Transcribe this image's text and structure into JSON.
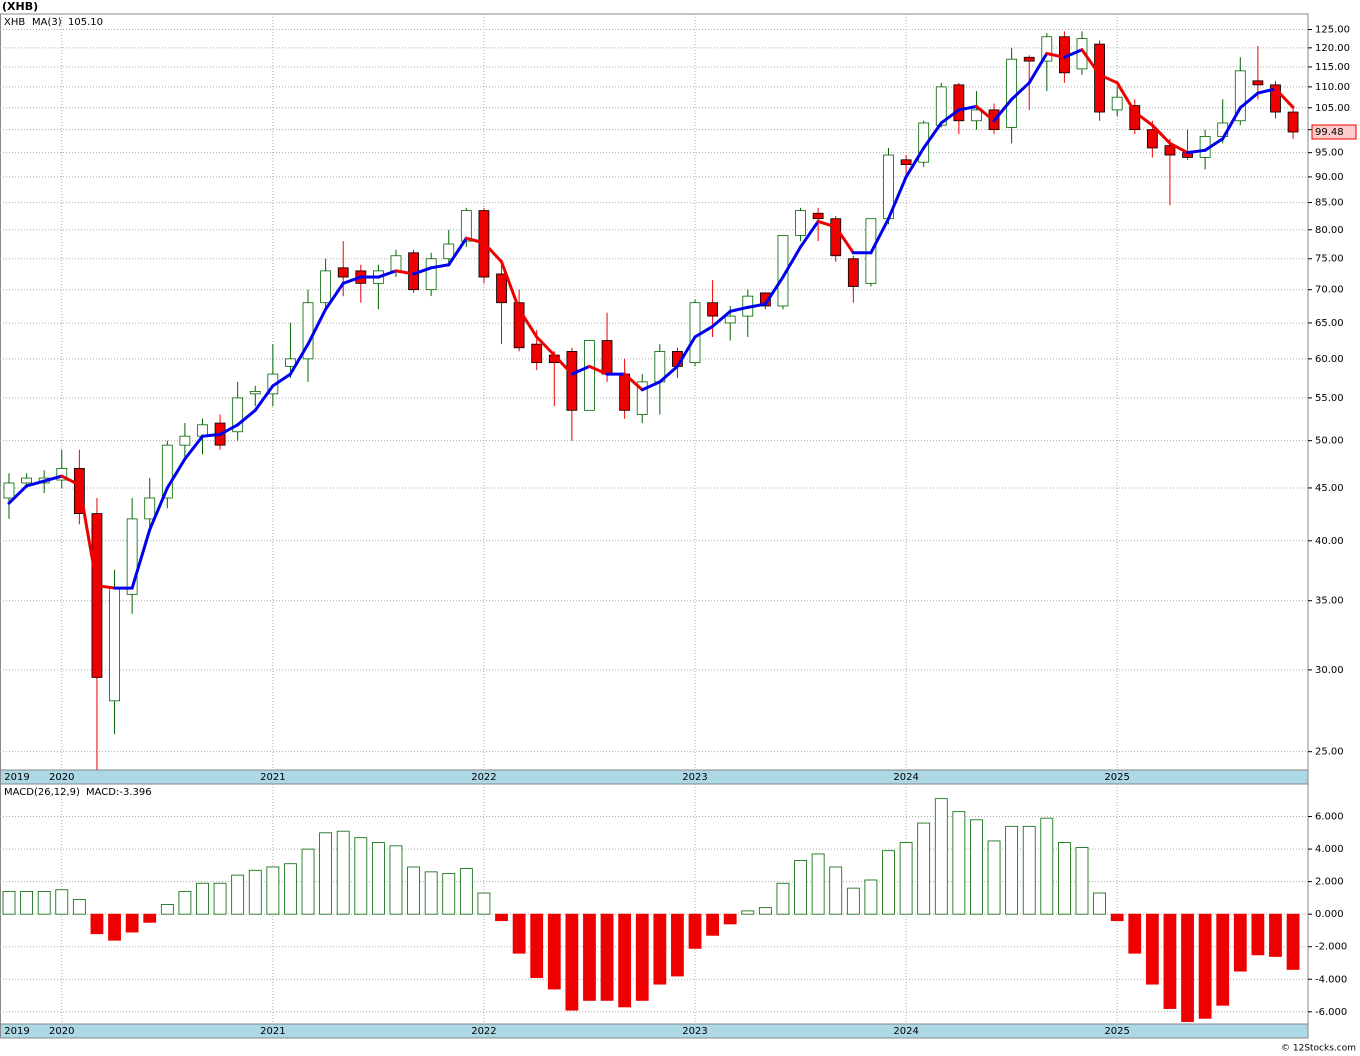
{
  "title": "(XHB)",
  "footer": "© 12Stocks.com",
  "chart_data": [
    {
      "type": "candlestick",
      "symbol": "XHB",
      "categories": [
        "2019",
        null,
        null,
        "2020",
        null,
        null,
        null,
        null,
        null,
        null,
        null,
        null,
        null,
        null,
        null,
        "2021",
        null,
        null,
        null,
        null,
        null,
        null,
        null,
        null,
        null,
        null,
        null,
        "2022",
        null,
        null,
        null,
        null,
        null,
        null,
        null,
        null,
        null,
        null,
        null,
        "2023",
        null,
        null,
        null,
        null,
        null,
        null,
        null,
        null,
        null,
        null,
        null,
        "2024",
        null,
        null,
        null,
        null,
        null,
        null,
        null,
        null,
        null,
        null,
        null,
        "2025",
        null,
        null,
        null,
        null,
        null,
        null,
        null,
        null,
        null,
        null
      ],
      "open": [
        44,
        45.5,
        45.5,
        45.8,
        47,
        42.5,
        28,
        35.5,
        42,
        44,
        49.5,
        50.5,
        52,
        51,
        55.5,
        55.5,
        59,
        60,
        68,
        73.5,
        73,
        71,
        73,
        76,
        70,
        75,
        78,
        83.5,
        72.5,
        68,
        62,
        60.5,
        61,
        53.5,
        62.5,
        58,
        53,
        57,
        61,
        59.5,
        68,
        65,
        66,
        69.5,
        67.5,
        79,
        83,
        82,
        75,
        71,
        82,
        93.5,
        93,
        101,
        110.5,
        102,
        104.5,
        100.5,
        117.5,
        116.5,
        123,
        114.5,
        121,
        104.5,
        105.5,
        100,
        96.5,
        95,
        94,
        98.5,
        102,
        111.5,
        110.5,
        104
      ],
      "high": [
        46.5,
        46.5,
        46.8,
        49,
        49,
        44,
        37.5,
        44,
        46,
        50,
        52,
        52.5,
        53,
        57,
        56.5,
        62,
        65,
        70,
        75,
        78,
        74,
        74,
        76.5,
        76.5,
        76,
        80,
        84,
        84,
        74,
        70,
        64,
        61,
        61.5,
        62.5,
        66.5,
        60,
        58,
        62,
        61.5,
        68.5,
        71.5,
        67.5,
        70,
        69.5,
        79,
        84,
        84,
        82.5,
        75.5,
        82,
        96,
        94.5,
        102,
        111,
        111,
        109,
        106,
        120,
        118,
        124,
        124.5,
        124.5,
        122,
        110,
        107,
        102,
        98,
        100,
        100,
        107,
        117.5,
        120.5,
        111.5,
        105
      ],
      "low": [
        42,
        45,
        44.5,
        45,
        41.5,
        24,
        26,
        34,
        41,
        43,
        48,
        48.5,
        49,
        50,
        54,
        54,
        57.5,
        57,
        67,
        69,
        68,
        67,
        72,
        69.5,
        69,
        74,
        77,
        71,
        62,
        61,
        58.5,
        54,
        50,
        53.5,
        57,
        52.5,
        52,
        53,
        57.5,
        59,
        63,
        62.5,
        63,
        67,
        67,
        78,
        78,
        74.5,
        68,
        70.5,
        81,
        90,
        92,
        100.5,
        99,
        100,
        99,
        97,
        104.5,
        109,
        111,
        113,
        102,
        103,
        99,
        94,
        84.5,
        93.5,
        91.5,
        97,
        101,
        107,
        102.5,
        98
      ],
      "close": [
        45.5,
        46,
        46,
        47,
        42.5,
        29.5,
        36,
        42,
        44,
        49.5,
        50.5,
        51.8,
        49.5,
        55,
        55.8,
        58,
        60,
        68,
        73,
        72,
        71,
        73,
        75.5,
        70,
        75,
        77.5,
        83.5,
        72,
        68,
        61.5,
        59.5,
        59.5,
        53.5,
        62.5,
        58,
        53.5,
        57,
        61,
        59,
        68,
        66,
        66,
        69,
        67.5,
        79,
        83.5,
        82,
        75.5,
        70.5,
        82,
        94.5,
        92.5,
        101.5,
        110,
        102,
        104.5,
        100,
        117,
        116.5,
        123,
        113.5,
        122.5,
        104,
        107.5,
        100,
        96,
        94.5,
        94,
        98.5,
        101.5,
        114,
        110.5,
        104,
        99.48
      ],
      "up_color": "#006400",
      "down_color": "#ee0000",
      "series": [
        {
          "name": "MA(3)",
          "value_label": "105.10",
          "up_color": "#0000ee",
          "down_color": "#ee0000",
          "values": [
            43.5,
            45.2,
            45.7,
            46.2,
            45.3,
            36.2,
            36,
            36,
            41,
            45,
            48,
            50.5,
            50.7,
            51.8,
            53.5,
            56.5,
            58,
            62,
            67,
            71,
            72,
            72,
            73,
            72.5,
            73.5,
            74,
            78.5,
            77.7,
            74.5,
            67,
            63,
            60.5,
            58,
            59,
            58,
            58,
            56,
            57,
            59,
            63,
            64.5,
            66.7,
            67.3,
            67.8,
            72,
            77,
            81.5,
            80.5,
            76,
            76,
            82,
            90,
            96,
            101.5,
            104.5,
            105.3,
            102,
            107,
            111,
            118.5,
            117.5,
            119.5,
            113,
            111,
            104,
            101,
            97,
            95,
            95.5,
            98,
            105,
            108.5,
            109.5,
            105.1
          ]
        }
      ],
      "log_scale": true,
      "grid": true,
      "ylim": [
        24,
        129.4
      ],
      "yticks": [
        {
          "value": 25,
          "label": "25.00"
        },
        {
          "value": 30,
          "label": "30.00"
        },
        {
          "value": 35,
          "label": "35.00"
        },
        {
          "value": 40,
          "label": "40.00"
        },
        {
          "value": 45,
          "label": "45.00"
        },
        {
          "value": 50,
          "label": "50.00"
        },
        {
          "value": 55,
          "label": "55.00"
        },
        {
          "value": 60,
          "label": "60.00"
        },
        {
          "value": 65,
          "label": "65.00"
        },
        {
          "value": 70,
          "label": "70.00"
        },
        {
          "value": 75,
          "label": "75.00"
        },
        {
          "value": 80,
          "label": "80.00"
        },
        {
          "value": 85,
          "label": "85.00"
        },
        {
          "value": 90,
          "label": "90.00"
        },
        {
          "value": 95,
          "label": "95.00"
        },
        {
          "value": 100,
          "label": "100.00"
        },
        {
          "value": 105,
          "label": "105.00"
        },
        {
          "value": 110,
          "label": "110.00"
        },
        {
          "value": 115,
          "label": "115.00"
        },
        {
          "value": 120,
          "label": "120.00"
        },
        {
          "value": 125,
          "label": "125.00"
        }
      ]
    },
    {
      "type": "bar",
      "name": "MACD(26,12,9)",
      "value_label": "MACD:-3.396",
      "categories": [
        "2019",
        null,
        null,
        "2020",
        null,
        null,
        null,
        null,
        null,
        null,
        null,
        null,
        null,
        null,
        null,
        "2021",
        null,
        null,
        null,
        null,
        null,
        null,
        null,
        null,
        null,
        null,
        null,
        "2022",
        null,
        null,
        null,
        null,
        null,
        null,
        null,
        null,
        null,
        null,
        null,
        "2023",
        null,
        null,
        null,
        null,
        null,
        null,
        null,
        null,
        null,
        null,
        null,
        "2024",
        null,
        null,
        null,
        null,
        null,
        null,
        null,
        null,
        null,
        null,
        null,
        "2025",
        null,
        null,
        null,
        null,
        null,
        null,
        null,
        null,
        null,
        null
      ],
      "values": [
        1.4,
        1.4,
        1.4,
        1.5,
        0.9,
        -1.2,
        -1.6,
        -1.1,
        -0.5,
        0.6,
        1.4,
        1.9,
        1.9,
        2.4,
        2.7,
        2.9,
        3.1,
        4.0,
        5.0,
        5.1,
        4.7,
        4.4,
        4.2,
        2.9,
        2.6,
        2.5,
        2.8,
        1.3,
        -0.4,
        -2.4,
        -3.9,
        -4.6,
        -5.9,
        -5.3,
        -5.3,
        -5.7,
        -5.3,
        -4.3,
        -3.8,
        -2.1,
        -1.3,
        -0.6,
        0.2,
        0.4,
        1.9,
        3.3,
        3.7,
        2.9,
        1.6,
        2.1,
        3.9,
        4.4,
        5.6,
        7.1,
        6.3,
        5.8,
        4.5,
        5.4,
        5.4,
        5.9,
        4.4,
        4.1,
        1.3,
        -0.4,
        -2.4,
        -4.3,
        -5.8,
        -6.6,
        -6.4,
        -5.6,
        -3.5,
        -2.5,
        -2.6,
        -3.396
      ],
      "up_color": "#006400",
      "down_color": "#ee0000",
      "grid": true,
      "ylim": [
        -6.75,
        8
      ],
      "yticks": [
        {
          "value": -6,
          "label": "-6.000"
        },
        {
          "value": -4,
          "label": "-4.000"
        },
        {
          "value": -2,
          "label": "-2.000"
        },
        {
          "value": 0,
          "label": "0.000"
        },
        {
          "value": 2,
          "label": "2.000"
        },
        {
          "value": 4,
          "label": "4.000"
        },
        {
          "value": 6,
          "label": "6.000"
        }
      ]
    }
  ]
}
